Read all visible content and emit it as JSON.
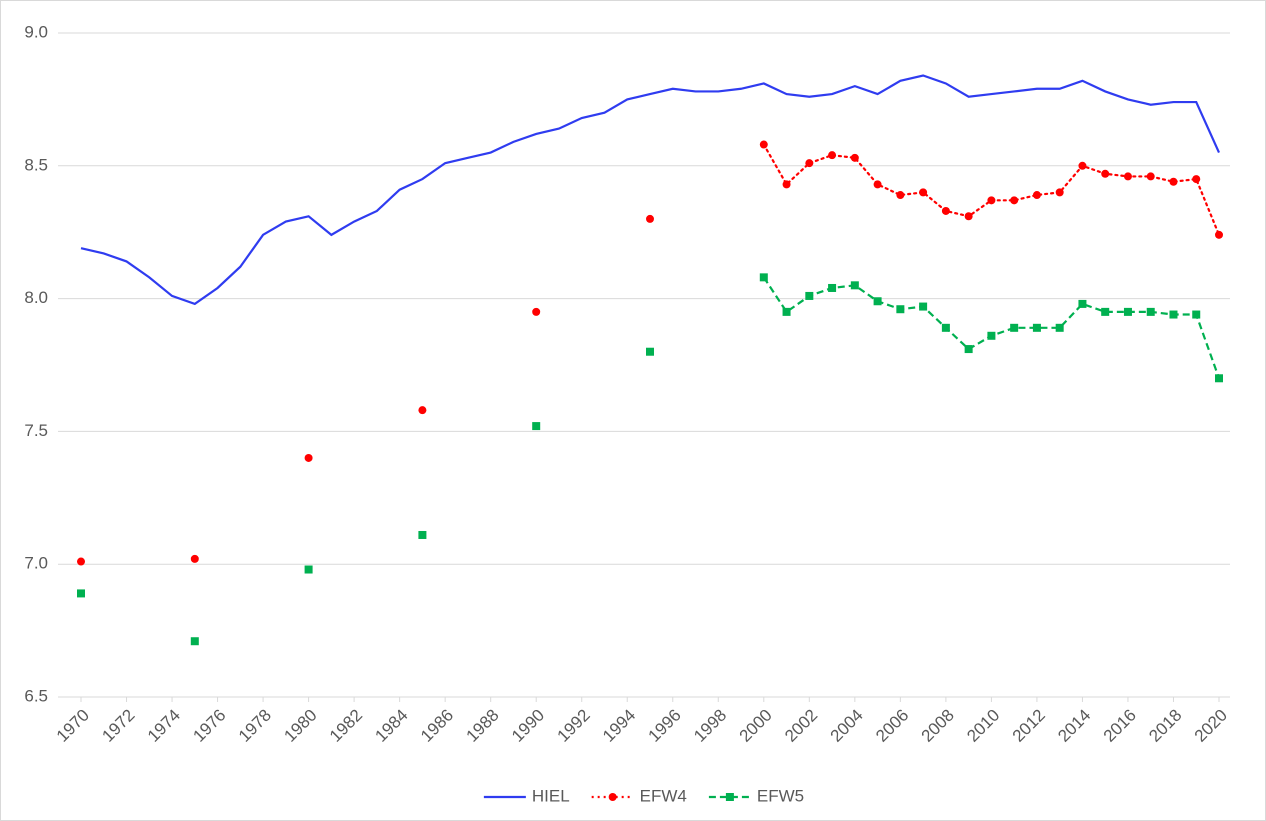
{
  "chart_data": {
    "type": "line",
    "x": [
      1970,
      1971,
      1972,
      1973,
      1974,
      1975,
      1976,
      1977,
      1978,
      1979,
      1980,
      1981,
      1982,
      1983,
      1984,
      1985,
      1986,
      1987,
      1988,
      1989,
      1990,
      1991,
      1992,
      1993,
      1994,
      1995,
      1996,
      1997,
      1998,
      1999,
      2000,
      2001,
      2002,
      2003,
      2004,
      2005,
      2006,
      2007,
      2008,
      2009,
      2010,
      2011,
      2012,
      2013,
      2014,
      2015,
      2016,
      2017,
      2018,
      2019,
      2020
    ],
    "series": [
      {
        "name": "HIEL",
        "color": "#2f3cf0",
        "style": "solid",
        "marker": "none",
        "values": [
          8.19,
          8.17,
          8.14,
          8.08,
          8.01,
          7.98,
          8.04,
          8.12,
          8.24,
          8.29,
          8.31,
          8.24,
          8.29,
          8.33,
          8.41,
          8.45,
          8.51,
          8.53,
          8.55,
          8.59,
          8.62,
          8.64,
          8.68,
          8.7,
          8.75,
          8.77,
          8.79,
          8.78,
          8.78,
          8.79,
          8.81,
          8.77,
          8.76,
          8.77,
          8.8,
          8.77,
          8.82,
          8.84,
          8.81,
          8.76,
          8.77,
          8.78,
          8.79,
          8.79,
          8.82,
          8.78,
          8.75,
          8.73,
          8.74,
          8.74,
          8.55
        ]
      },
      {
        "name": "EFW4",
        "color": "#ff0000",
        "style": "dotted",
        "marker": "circle",
        "values": [
          7.01,
          null,
          null,
          null,
          null,
          7.02,
          null,
          null,
          null,
          null,
          7.4,
          null,
          null,
          null,
          null,
          7.58,
          null,
          null,
          null,
          null,
          7.95,
          null,
          null,
          null,
          null,
          8.3,
          null,
          null,
          null,
          null,
          8.58,
          8.43,
          8.51,
          8.54,
          8.53,
          8.43,
          8.39,
          8.4,
          8.33,
          8.31,
          8.37,
          8.37,
          8.39,
          8.4,
          8.5,
          8.47,
          8.46,
          8.46,
          8.44,
          8.45,
          8.24
        ]
      },
      {
        "name": "EFW5",
        "color": "#00b050",
        "style": "dashed",
        "marker": "square",
        "values": [
          6.89,
          null,
          null,
          null,
          null,
          6.71,
          null,
          null,
          null,
          null,
          6.98,
          null,
          null,
          null,
          null,
          7.11,
          null,
          null,
          null,
          null,
          7.52,
          null,
          null,
          null,
          null,
          7.8,
          null,
          null,
          null,
          null,
          8.08,
          7.95,
          8.01,
          8.04,
          8.05,
          7.99,
          7.96,
          7.97,
          7.89,
          7.81,
          7.86,
          7.89,
          7.89,
          7.89,
          7.98,
          7.95,
          7.95,
          7.95,
          7.94,
          7.94,
          7.7
        ]
      }
    ],
    "xlim": [
      1970,
      2020
    ],
    "xticks": [
      1970,
      1972,
      1974,
      1976,
      1978,
      1980,
      1982,
      1984,
      1986,
      1988,
      1990,
      1992,
      1994,
      1996,
      1998,
      2000,
      2002,
      2004,
      2006,
      2008,
      2010,
      2012,
      2014,
      2016,
      2018,
      2020
    ],
    "ylim": [
      6.5,
      9.0
    ],
    "yticks": [
      6.5,
      {
        "value": 7,
        "label": "7.0"
      },
      7.5,
      {
        "value": 8,
        "label": "8.0"
      },
      8.5,
      {
        "value": 9,
        "label": "9.0"
      }
    ],
    "grid": true,
    "legend": "bottom"
  }
}
